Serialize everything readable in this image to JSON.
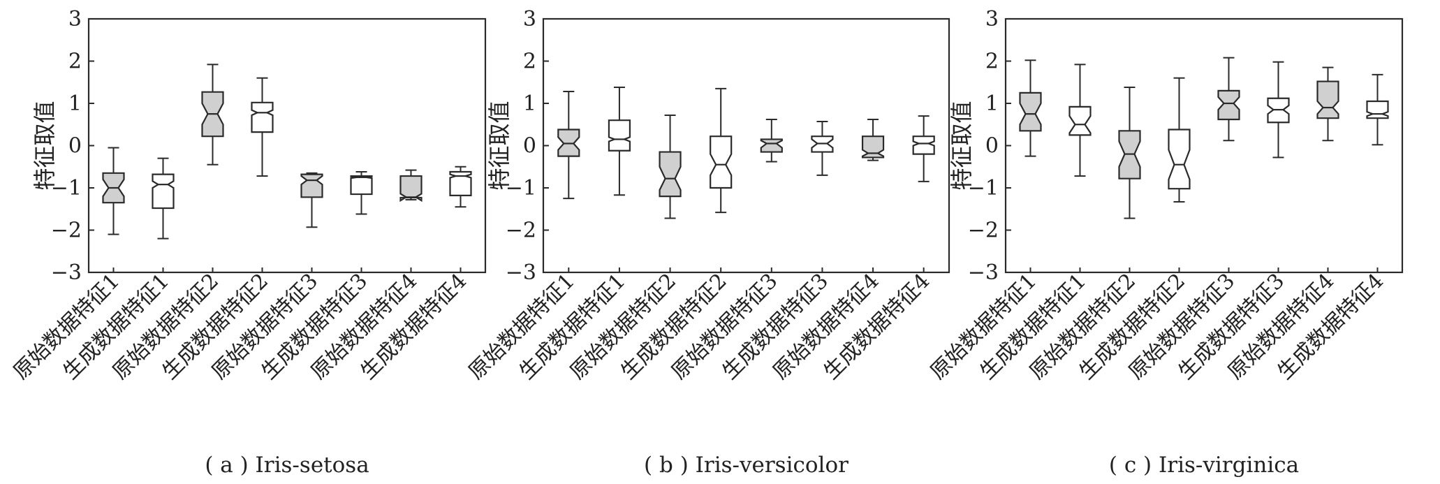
{
  "figure": {
    "ylabel": "特征取值",
    "ylim": [
      -3,
      3
    ],
    "yticks": [
      "3",
      "2",
      "1",
      "0",
      "−1",
      "−2",
      "−3"
    ],
    "categories": [
      "原始数据特征1",
      "生成数据特征1",
      "原始数据特征2",
      "生成数据特征2",
      "原始数据特征3",
      "生成数据特征3",
      "原始数据特征4",
      "生成数据特征4"
    ],
    "colors": {
      "original_fill": "#d0d0d0",
      "generated_fill": "#ffffff",
      "stroke": "#2a2a2a"
    }
  },
  "chart_data": [
    {
      "type": "box",
      "caption": "( a ) Iris-setosa",
      "categories": [
        "原始数据特征1",
        "生成数据特征1",
        "原始数据特征2",
        "生成数据特征2",
        "原始数据特征3",
        "生成数据特征3",
        "原始数据特征4",
        "生成数据特征4"
      ],
      "boxes": [
        {
          "min": -2.1,
          "q1": -1.35,
          "median": -1.0,
          "q3": -0.65,
          "max": -0.05,
          "notch_low": -1.2,
          "notch_high": -0.8
        },
        {
          "min": -2.2,
          "q1": -1.48,
          "median": -0.92,
          "q3": -0.68,
          "max": -0.3,
          "notch_low": -1.0,
          "notch_high": -0.84
        },
        {
          "min": -0.45,
          "q1": 0.22,
          "median": 0.75,
          "q3": 1.27,
          "max": 1.92,
          "notch_low": 0.5,
          "notch_high": 1.0
        },
        {
          "min": -0.72,
          "q1": 0.32,
          "median": 0.78,
          "q3": 1.02,
          "max": 1.6,
          "notch_low": 0.72,
          "notch_high": 0.84
        },
        {
          "min": -1.93,
          "q1": -1.22,
          "median": -0.82,
          "q3": -0.68,
          "max": -0.65,
          "notch_low": -0.92,
          "notch_high": -0.72
        },
        {
          "min": -1.62,
          "q1": -1.15,
          "median": -0.75,
          "q3": -0.72,
          "max": -0.62,
          "notch_low": -0.77,
          "notch_high": -0.73
        },
        {
          "min": -1.28,
          "q1": -1.23,
          "median": -1.22,
          "q3": -0.72,
          "max": -0.58,
          "notch_low": -1.3,
          "notch_high": -1.14
        },
        {
          "min": -1.45,
          "q1": -1.18,
          "median": -0.72,
          "q3": -0.62,
          "max": -0.5,
          "notch_low": -0.76,
          "notch_high": -0.68
        }
      ],
      "ylim": [
        -3,
        3
      ]
    },
    {
      "type": "box",
      "caption": "( b ) Iris-versicolor",
      "categories": [
        "原始数据特征1",
        "生成数据特征1",
        "原始数据特征2",
        "生成数据特征2",
        "原始数据特征3",
        "生成数据特征3",
        "原始数据特征4",
        "生成数据特征4"
      ],
      "boxes": [
        {
          "min": -1.25,
          "q1": -0.25,
          "median": 0.05,
          "q3": 0.38,
          "max": 1.28,
          "notch_low": -0.1,
          "notch_high": 0.2
        },
        {
          "min": -1.17,
          "q1": -0.12,
          "median": 0.15,
          "q3": 0.6,
          "max": 1.38,
          "notch_low": 0.1,
          "notch_high": 0.2
        },
        {
          "min": -1.72,
          "q1": -1.2,
          "median": -0.78,
          "q3": -0.15,
          "max": 0.72,
          "notch_low": -1.05,
          "notch_high": -0.5
        },
        {
          "min": -1.58,
          "q1": -1.0,
          "median": -0.45,
          "q3": 0.22,
          "max": 1.35,
          "notch_low": -0.7,
          "notch_high": -0.2
        },
        {
          "min": -0.38,
          "q1": -0.15,
          "median": 0.05,
          "q3": 0.15,
          "max": 0.62,
          "notch_low": -0.05,
          "notch_high": 0.12
        },
        {
          "min": -0.7,
          "q1": -0.15,
          "median": 0.05,
          "q3": 0.22,
          "max": 0.57,
          "notch_low": -0.05,
          "notch_high": 0.15
        },
        {
          "min": -0.35,
          "q1": -0.28,
          "median": -0.18,
          "q3": 0.22,
          "max": 0.62,
          "notch_low": -0.25,
          "notch_high": -0.1
        },
        {
          "min": -0.85,
          "q1": -0.2,
          "median": 0.05,
          "q3": 0.22,
          "max": 0.7,
          "notch_low": 0.0,
          "notch_high": 0.1
        }
      ],
      "ylim": [
        -3,
        3
      ]
    },
    {
      "type": "box",
      "caption": "( c ) Iris-virginica",
      "categories": [
        "原始数据特征1",
        "生成数据特征1",
        "原始数据特征2",
        "生成数据特征2",
        "原始数据特征3",
        "生成数据特征3",
        "原始数据特征4",
        "生成数据特征4"
      ],
      "boxes": [
        {
          "min": -0.25,
          "q1": 0.35,
          "median": 0.75,
          "q3": 1.25,
          "max": 2.02,
          "notch_low": 0.5,
          "notch_high": 1.0
        },
        {
          "min": -0.72,
          "q1": 0.25,
          "median": 0.5,
          "q3": 0.92,
          "max": 1.92,
          "notch_low": 0.3,
          "notch_high": 0.7
        },
        {
          "min": -1.72,
          "q1": -0.78,
          "median": -0.2,
          "q3": 0.35,
          "max": 1.38,
          "notch_low": -0.5,
          "notch_high": 0.1
        },
        {
          "min": -1.33,
          "q1": -1.02,
          "median": -0.45,
          "q3": 0.38,
          "max": 1.6,
          "notch_low": -0.8,
          "notch_high": -0.1
        },
        {
          "min": 0.12,
          "q1": 0.62,
          "median": 1.0,
          "q3": 1.3,
          "max": 2.08,
          "notch_low": 0.85,
          "notch_high": 1.15
        },
        {
          "min": -0.28,
          "q1": 0.55,
          "median": 0.85,
          "q3": 1.12,
          "max": 1.98,
          "notch_low": 0.75,
          "notch_high": 0.95
        },
        {
          "min": 0.12,
          "q1": 0.65,
          "median": 0.9,
          "q3": 1.52,
          "max": 1.85,
          "notch_low": 0.75,
          "notch_high": 1.05
        },
        {
          "min": 0.02,
          "q1": 0.65,
          "median": 0.75,
          "q3": 1.05,
          "max": 1.68,
          "notch_low": 0.7,
          "notch_high": 0.8
        }
      ],
      "ylim": [
        -3,
        3
      ]
    }
  ]
}
